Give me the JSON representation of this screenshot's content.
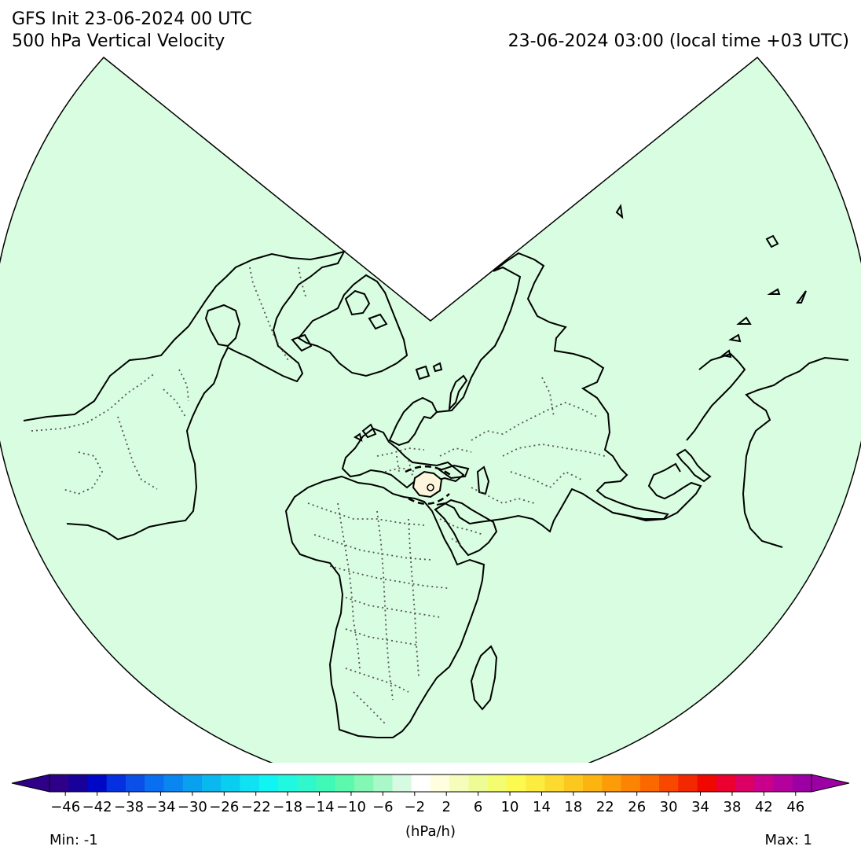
{
  "header": {
    "init": "GFS Init 23-06-2024 00 UTC",
    "field": "500 hPa Vertical Velocity",
    "valid": "23-06-2024 03:00 (local time +03 UTC)"
  },
  "colors": {
    "map_fill": "#d9fde0",
    "coast": "#000000",
    "border": "#555555",
    "updraft_core": "#fdf5dc"
  },
  "colorbar": {
    "units": "(hPa/h)",
    "tick_labels": [
      "−46",
      "−42",
      "−38",
      "−34",
      "−30",
      "−26",
      "−22",
      "−18",
      "−14",
      "−10",
      "−6",
      "−2",
      "2",
      "6",
      "10",
      "14",
      "18",
      "22",
      "26",
      "30",
      "34",
      "38",
      "42",
      "46"
    ],
    "tick_values": [
      -46,
      -42,
      -38,
      -34,
      -30,
      -26,
      -22,
      -18,
      -14,
      -10,
      -6,
      -2,
      2,
      6,
      10,
      14,
      18,
      22,
      26,
      30,
      34,
      38,
      42,
      46
    ],
    "range": [
      -48,
      48
    ],
    "extend": "both",
    "palette": [
      "#2e0088",
      "#18009a",
      "#0008c8",
      "#0530e0",
      "#0a50e8",
      "#0a6ef0",
      "#0a86f0",
      "#0aa0f0",
      "#0ab8f0",
      "#0acef0",
      "#10e2f4",
      "#10f4f4",
      "#20f8e0",
      "#30f8cc",
      "#40f8b8",
      "#5cf8ae",
      "#82f8b4",
      "#a8f8c8",
      "#d6fbe2",
      "#ffffff",
      "#ffffe0",
      "#f6fcba",
      "#eefc96",
      "#f4fc70",
      "#fcfa50",
      "#fcec40",
      "#fcda30",
      "#fcc820",
      "#fcb410",
      "#fc9c08",
      "#fc8404",
      "#fc6800",
      "#f84800",
      "#f42800",
      "#f00800",
      "#ec0030",
      "#dc0064",
      "#c8008c",
      "#b4009c",
      "#9c00a4"
    ]
  },
  "footer": {
    "min": "Min: -1",
    "max": "Max: 1"
  }
}
